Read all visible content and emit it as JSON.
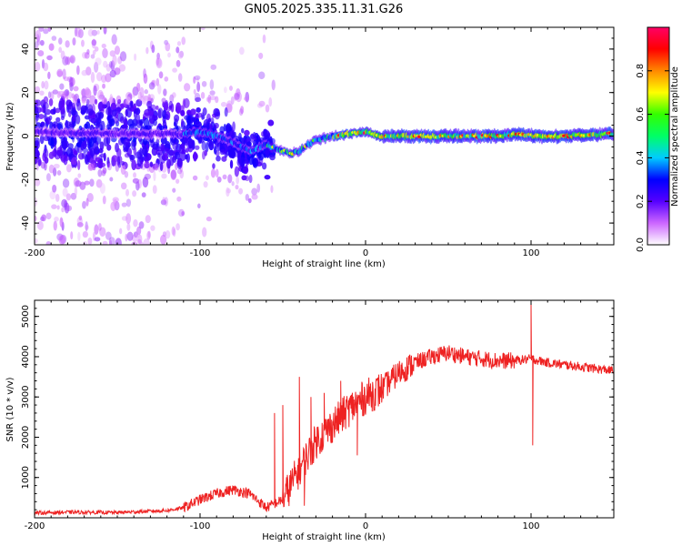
{
  "title": "GN05.2025.335.11.31.G26",
  "chart_data": [
    {
      "type": "heatmap",
      "panel": "spectrogram",
      "xlabel": "Height of straight line (km)",
      "ylabel": "Frequency (Hz)",
      "xlim": [
        -200,
        150
      ],
      "ylim": [
        -50,
        50
      ],
      "xticks": [
        -200,
        -100,
        0,
        100
      ],
      "xtick_labels": [
        "-200",
        "-100",
        "0",
        "100"
      ],
      "yticks": [
        -40,
        -20,
        0,
        20,
        40
      ],
      "ytick_labels": [
        "-40",
        "-20",
        "0",
        "20",
        "40"
      ],
      "ridge": {
        "x": [
          -200,
          -150,
          -110,
          -100,
          -90,
          -80,
          -70,
          -60,
          -50,
          -45,
          -40,
          -35,
          -30,
          -20,
          -10,
          0,
          10,
          20,
          50,
          80,
          90,
          100,
          120,
          150
        ],
        "y": [
          2,
          1,
          1,
          2,
          0,
          -3,
          -7,
          -4,
          -7,
          -8,
          -7,
          -4,
          -2,
          0,
          1,
          2,
          0,
          0,
          0,
          0,
          1,
          0,
          0,
          1
        ]
      },
      "colorbar": {
        "label": "Normalized spectral amplitude",
        "ticks": [
          0.0,
          0.2,
          0.4,
          0.6,
          0.8
        ],
        "tick_labels": [
          "0.0",
          "0.2",
          "0.4",
          "0.6",
          "0.8"
        ],
        "range": [
          0,
          1
        ],
        "colors": [
          "#ffffff",
          "#cc66ff",
          "#5500ff",
          "#0000ff",
          "#00ccff",
          "#00ff66",
          "#33ff00",
          "#ffff00",
          "#ff8800",
          "#ff0000",
          "#ff0066"
        ]
      }
    },
    {
      "type": "line",
      "panel": "snr",
      "xlabel": "Height of straight line (km)",
      "ylabel": "SNR (10 * v/v)",
      "xlim": [
        -200,
        150
      ],
      "ylim": [
        0,
        5400
      ],
      "xticks": [
        -200,
        -100,
        0,
        100
      ],
      "xtick_labels": [
        "-200",
        "-100",
        "0",
        "100"
      ],
      "yticks": [
        1000,
        2000,
        3000,
        4000,
        5000
      ],
      "ytick_labels": [
        "1000",
        "2000",
        "3000",
        "4000",
        "5000"
      ],
      "color": "#ee2222",
      "trend": {
        "x": [
          -200,
          -180,
          -150,
          -120,
          -110,
          -100,
          -90,
          -80,
          -70,
          -60,
          -50,
          -40,
          -30,
          -20,
          -10,
          0,
          10,
          20,
          30,
          40,
          50,
          60,
          70,
          80,
          90,
          100,
          110,
          120,
          130,
          140,
          150
        ],
        "y": [
          120,
          140,
          130,
          180,
          250,
          450,
          600,
          700,
          600,
          250,
          450,
          1200,
          1900,
          2300,
          2700,
          3000,
          3200,
          3600,
          3850,
          4000,
          4100,
          4000,
          3950,
          3900,
          3900,
          3950,
          3850,
          3800,
          3750,
          3700,
          3650
        ]
      },
      "spikes": [
        {
          "x": -55,
          "y": 2600
        },
        {
          "x": -50,
          "y": 2800
        },
        {
          "x": -47,
          "y": 600
        },
        {
          "x": -40,
          "y": 3500
        },
        {
          "x": -37,
          "y": 300
        },
        {
          "x": -33,
          "y": 3000
        },
        {
          "x": -25,
          "y": 3100
        },
        {
          "x": -18,
          "y": 2400
        },
        {
          "x": -15,
          "y": 3400
        },
        {
          "x": -5,
          "y": 1550
        },
        {
          "x": 100,
          "y": 5350
        },
        {
          "x": 101,
          "y": 1800
        }
      ]
    }
  ]
}
